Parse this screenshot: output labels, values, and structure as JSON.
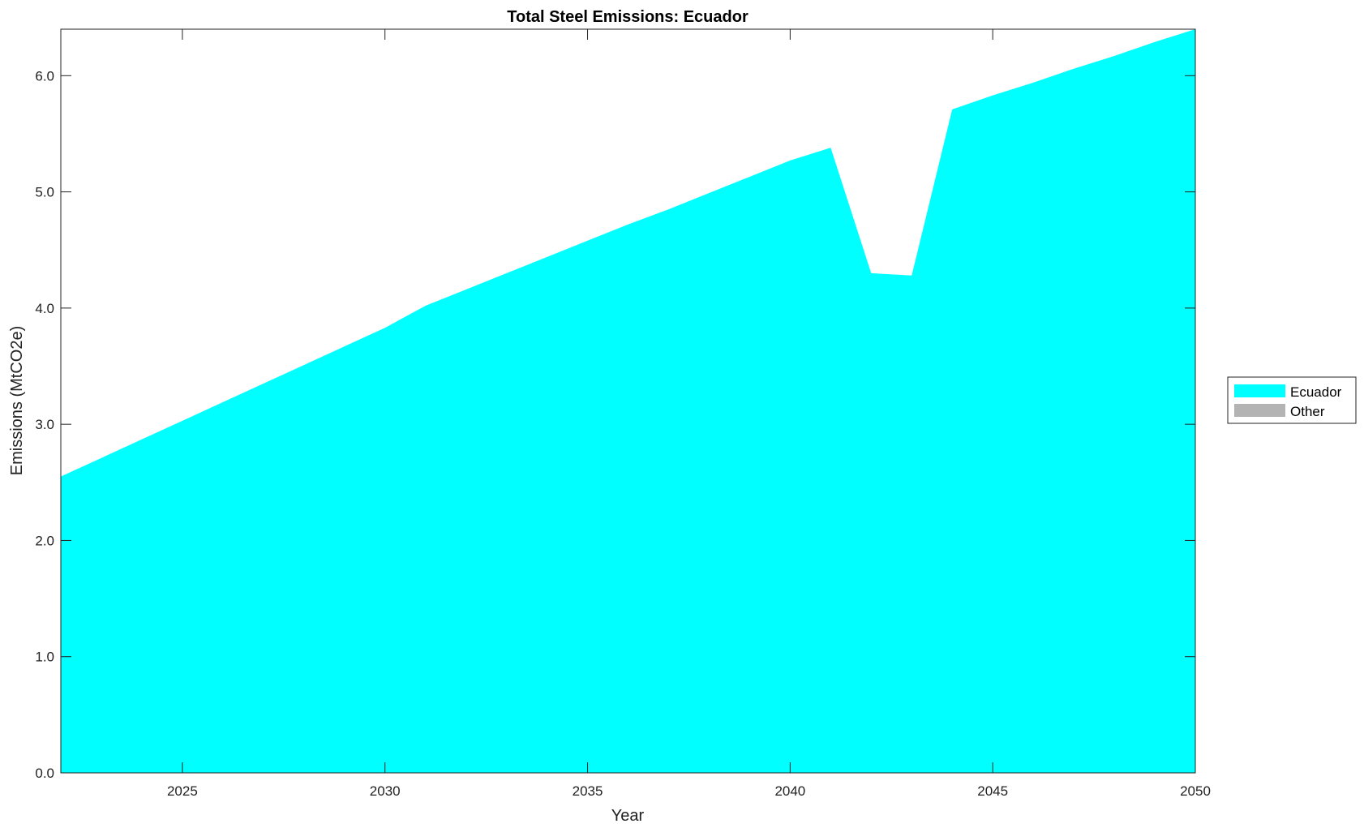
{
  "chart_data": {
    "type": "area",
    "title": "Total Steel Emissions: Ecuador",
    "xlabel": "Year",
    "ylabel": "Emissions (MtCO2e)",
    "xlim": [
      2022,
      2050
    ],
    "ylim": [
      0,
      6.4
    ],
    "xticks": [
      2025,
      2030,
      2035,
      2040,
      2045,
      2050
    ],
    "yticks": [
      "0.0",
      "1.0",
      "2.0",
      "3.0",
      "4.0",
      "5.0",
      "6.0"
    ],
    "grid": false,
    "legend_position": "right",
    "x": [
      2022,
      2023,
      2024,
      2025,
      2026,
      2027,
      2028,
      2029,
      2030,
      2031,
      2032,
      2033,
      2034,
      2035,
      2036,
      2037,
      2038,
      2039,
      2040,
      2041,
      2042,
      2043,
      2044,
      2045,
      2046,
      2047,
      2048,
      2049,
      2050
    ],
    "series": [
      {
        "name": "Ecuador",
        "color": "#00ffff",
        "values": [
          2.55,
          2.71,
          2.87,
          3.03,
          3.19,
          3.35,
          3.51,
          3.67,
          3.83,
          4.02,
          4.16,
          4.3,
          4.44,
          4.58,
          4.72,
          4.85,
          4.99,
          5.13,
          5.27,
          5.38,
          4.3,
          4.28,
          5.71,
          5.83,
          5.94,
          6.06,
          6.17,
          6.29,
          6.4
        ]
      },
      {
        "name": "Other",
        "color": "#b3b3b3",
        "values": [
          0,
          0,
          0,
          0,
          0,
          0,
          0,
          0,
          0,
          0,
          0,
          0,
          0,
          0,
          0,
          0,
          0,
          0,
          0,
          0,
          0,
          0,
          0,
          0,
          0,
          0,
          0,
          0,
          0
        ]
      }
    ]
  }
}
